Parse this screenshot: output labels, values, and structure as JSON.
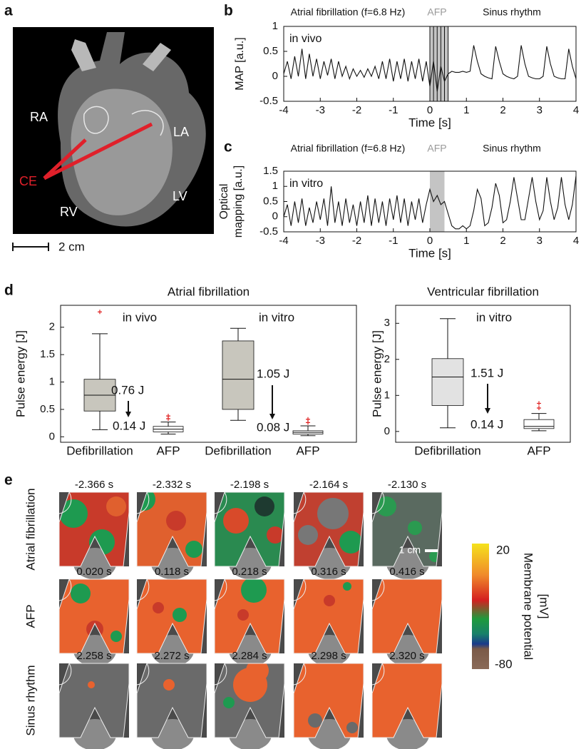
{
  "panel_labels": [
    "a",
    "b",
    "c",
    "d",
    "e"
  ],
  "heart": {
    "labels": [
      "RA",
      "LA",
      "CE",
      "RV",
      "LV"
    ],
    "scale_bar": "2 cm"
  },
  "chart_data": [
    {
      "type": "line",
      "annotations": [
        "Atrial fibrillation (f=6.8 Hz)",
        "AFP",
        "Sinus rhythm"
      ],
      "condition": "in vivo",
      "x_label": "Time [s]",
      "y_label": "MAP [a.u.]",
      "color": "#111111",
      "highlight_color": "#c4c4c4",
      "xlim": [
        -4,
        4
      ],
      "ylim": [
        -0.5,
        1
      ],
      "xticks": [
        -4,
        -3,
        -2,
        -1,
        0,
        1,
        2,
        3,
        4
      ],
      "yticks": [
        -0.5,
        0,
        0.5,
        1
      ],
      "highlight": [
        0,
        0.5
      ],
      "pulses": [
        0,
        0.1,
        0.2,
        0.3,
        0.4,
        0.5
      ],
      "x": [
        -4,
        -3.9,
        -3.8,
        -3.7,
        -3.6,
        -3.5,
        -3.4,
        -3.3,
        -3.2,
        -3.1,
        -3,
        -2.9,
        -2.8,
        -2.7,
        -2.6,
        -2.5,
        -2.4,
        -2.3,
        -2.2,
        -2.1,
        -2,
        -1.9,
        -1.8,
        -1.7,
        -1.6,
        -1.5,
        -1.4,
        -1.3,
        -1.2,
        -1.1,
        -1,
        -0.9,
        -0.8,
        -0.7,
        -0.6,
        -0.5,
        -0.4,
        -0.3,
        -0.2,
        -0.1,
        0,
        0.1,
        0.2,
        0.3,
        0.4,
        0.5,
        0.6,
        0.7,
        0.8,
        0.9,
        1,
        1.1,
        1.2,
        1.3,
        1.4,
        1.5,
        1.6,
        1.7,
        1.8,
        1.9,
        2,
        2.1,
        2.2,
        2.3,
        2.4,
        2.5,
        2.6,
        2.7,
        2.8,
        2.9,
        3,
        3.1,
        3.2,
        3.3,
        3.4,
        3.5,
        3.6,
        3.7,
        3.8,
        3.9,
        4
      ],
      "values": [
        0.05,
        0.3,
        -0.05,
        0.4,
        0,
        0.55,
        -0.05,
        0.45,
        0,
        0.35,
        -0.05,
        0.3,
        0.02,
        0.35,
        -0.05,
        0.3,
        0,
        0.2,
        -0.05,
        0.15,
        0,
        0.12,
        -0.02,
        0.15,
        0,
        0.2,
        -0.05,
        0.3,
        -0.05,
        0.35,
        -0.1,
        0.3,
        -0.05,
        0.35,
        -0.1,
        0.3,
        -0.05,
        0.35,
        -0.1,
        0.3,
        -0.2,
        0.3,
        -0.3,
        0.2,
        -0.1,
        0.05,
        0.1,
        0.08,
        0.08,
        0.1,
        0.08,
        0.1,
        0.62,
        0.3,
        0.05,
        0,
        -0.03,
        -0.05,
        0.6,
        0.3,
        0.05,
        0,
        -0.03,
        -0.05,
        0,
        0.62,
        0.25,
        0,
        -0.03,
        -0.05,
        -0.05,
        0,
        0.6,
        0.25,
        0,
        -0.03,
        -0.05,
        -0.05,
        0.55,
        0.2,
        -0.05
      ]
    },
    {
      "type": "line",
      "annotations": [
        "Atrial fibrillation (f=6.8 Hz)",
        "AFP",
        "Sinus rhythm"
      ],
      "condition": "in vitro",
      "x_label": "Time [s]",
      "y_label": [
        "Optical",
        "mapping [a.u.]"
      ],
      "color": "#111111",
      "highlight_color": "#c4c4c4",
      "xlim": [
        -4,
        4
      ],
      "ylim": [
        -0.5,
        1.5
      ],
      "xticks": [
        -4,
        -3,
        -2,
        -1,
        0,
        1,
        2,
        3,
        4
      ],
      "yticks": [
        -0.5,
        0,
        0.5,
        1,
        1.5
      ],
      "highlight": [
        0,
        0.4
      ],
      "x": [
        -4,
        -3.9,
        -3.8,
        -3.7,
        -3.6,
        -3.5,
        -3.4,
        -3.3,
        -3.2,
        -3.1,
        -3,
        -2.9,
        -2.8,
        -2.7,
        -2.6,
        -2.5,
        -2.4,
        -2.3,
        -2.2,
        -2.1,
        -2,
        -1.9,
        -1.8,
        -1.7,
        -1.6,
        -1.5,
        -1.4,
        -1.3,
        -1.2,
        -1.1,
        -1,
        -0.9,
        -0.8,
        -0.7,
        -0.6,
        -0.5,
        -0.4,
        -0.3,
        -0.2,
        -0.1,
        0,
        0.1,
        0.2,
        0.3,
        0.4,
        0.5,
        0.6,
        0.7,
        0.8,
        0.9,
        1,
        1.1,
        1.2,
        1.3,
        1.4,
        1.5,
        1.6,
        1.7,
        1.8,
        1.9,
        2,
        2.1,
        2.2,
        2.3,
        2.4,
        2.5,
        2.6,
        2.7,
        2.8,
        2.9,
        3,
        3.1,
        3.2,
        3.3,
        3.4,
        3.5,
        3.6,
        3.7,
        3.8,
        3.9,
        4
      ],
      "values": [
        0,
        0.4,
        -0.3,
        0.5,
        -0.2,
        0.6,
        -0.3,
        0.3,
        -0.2,
        0.5,
        -0.1,
        0.6,
        -0.3,
        1,
        -0.2,
        0.5,
        -0.3,
        0.6,
        -0.2,
        0.4,
        -0.3,
        0.5,
        -0.2,
        0.7,
        -0.3,
        0.6,
        -0.2,
        0.5,
        -0.3,
        0.6,
        -0.1,
        0.7,
        -0.2,
        0.6,
        -0.3,
        0.5,
        -0.1,
        0.6,
        -0.2,
        0.4,
        0.9,
        0.5,
        0.7,
        0.4,
        0.5,
        0.1,
        -0.3,
        -0.4,
        -0.4,
        -0.3,
        -0.4,
        -0.3,
        0.2,
        0.9,
        0.6,
        -0.3,
        -0.2,
        0.3,
        1.1,
        0.7,
        -0.2,
        -0.1,
        0.5,
        1.3,
        0.6,
        -0.1,
        -0.1,
        0.6,
        1.3,
        0.5,
        -0.1,
        0.2,
        1.3,
        0.5,
        -0.1,
        0.3,
        1.3,
        0.4,
        -0.1,
        0.4,
        1.35
      ]
    },
    {
      "type": "box",
      "title": "Atrial fibrillation",
      "y_label": "Pulse energy [J]",
      "ylim": [
        -0.1,
        2.4
      ],
      "yticks": [
        0,
        0.5,
        1,
        1.5,
        2
      ],
      "outlier_color": "#e02020",
      "groups": [
        {
          "name": "in vivo",
          "categories": [
            "Defibrillation",
            "AFP"
          ],
          "colors": [
            "#c8c6bd",
            "#ffffff"
          ],
          "boxes": [
            {
              "low": 0.13,
              "q1": 0.47,
              "median": 0.76,
              "q3": 1.05,
              "high": 1.88,
              "outliers": [
                2.28
              ]
            },
            {
              "low": 0.05,
              "q1": 0.09,
              "median": 0.14,
              "q3": 0.19,
              "high": 0.27,
              "outliers": [
                0.33,
                0.38
              ]
            }
          ],
          "value_labels": [
            "0.76 J",
            "0.14 J"
          ]
        },
        {
          "name": "in vitro",
          "categories": [
            "Defibrillation",
            "AFP"
          ],
          "colors": [
            "#c8c6bd",
            "#ffffff"
          ],
          "boxes": [
            {
              "low": 0.3,
              "q1": 0.5,
              "median": 1.05,
              "q3": 1.75,
              "high": 1.98,
              "outliers": []
            },
            {
              "low": 0.02,
              "q1": 0.05,
              "median": 0.08,
              "q3": 0.11,
              "high": 0.2,
              "outliers": [
                0.26,
                0.32
              ]
            }
          ],
          "value_labels": [
            "1.05 J",
            "0.08 J"
          ]
        }
      ]
    },
    {
      "type": "box",
      "title": "Ventricular fibrillation",
      "y_label": "Pulse energy [J]",
      "ylim": [
        -0.3,
        3.5
      ],
      "yticks": [
        0,
        1,
        2,
        3
      ],
      "outlier_color": "#e02020",
      "groups": [
        {
          "name": "in vitro",
          "categories": [
            "Defibrillation",
            "AFP"
          ],
          "colors": [
            "#e2e2e2",
            "#ffffff"
          ],
          "boxes": [
            {
              "low": 0.1,
              "q1": 0.72,
              "median": 1.51,
              "q3": 2.02,
              "high": 3.13,
              "outliers": []
            },
            {
              "low": 0.02,
              "q1": 0.08,
              "median": 0.14,
              "q3": 0.33,
              "high": 0.5,
              "outliers": [
                0.65,
                0.78
              ]
            }
          ],
          "value_labels": [
            "1.51 J",
            "0.14 J"
          ]
        }
      ]
    }
  ],
  "maps": {
    "rows": [
      {
        "label": "Atrial fibrillation",
        "times": [
          "-2.366 s",
          "-2.332 s",
          "-2.198 s",
          "-2.164 s",
          "-2.130 s"
        ]
      },
      {
        "label": "AFP",
        "times": [
          "0.020 s",
          "0.118 s",
          "0.218 s",
          "0.316 s",
          "0.416 s"
        ]
      },
      {
        "label": "Sinus rhythm",
        "times": [
          "2.258 s",
          "2.272 s",
          "2.284 s",
          "2.298 s",
          "2.320 s"
        ]
      }
    ],
    "scale_bar": "1 cm",
    "colorbar": {
      "vmax": 20,
      "vmin": -80,
      "label": [
        "Membrane potential",
        "[mV]"
      ]
    }
  }
}
